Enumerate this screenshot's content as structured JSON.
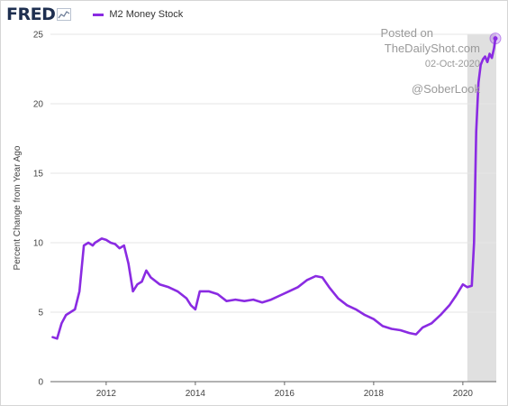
{
  "header": {
    "logo_text": "FRED",
    "logo_icon": "line-chart-icon"
  },
  "watermark": {
    "posted": "Posted on",
    "site": "TheDailyShot.com",
    "date": "02-Oct-2020",
    "handle": "@SoberLook"
  },
  "colors": {
    "series": "#8a2be2",
    "recession": "#e0e0e0",
    "grid": "#e6e6e6",
    "logo": "#1e2f50"
  },
  "chart_data": {
    "type": "line",
    "xlabel": "",
    "ylabel": "Percent Change from Year Ago",
    "xlim": [
      2010.75,
      2020.75
    ],
    "ylim": [
      0,
      25
    ],
    "x_ticks": [
      2012,
      2014,
      2016,
      2018,
      2020
    ],
    "y_ticks": [
      0,
      5,
      10,
      15,
      20,
      25
    ],
    "grid": "horizontal",
    "legend_position": "top-left",
    "recession_shading": [
      [
        2020.1,
        2020.75
      ]
    ],
    "series": [
      {
        "name": "M2 Money Stock",
        "x": [
          2010.8,
          2010.9,
          2011.0,
          2011.1,
          2011.2,
          2011.3,
          2011.4,
          2011.5,
          2011.6,
          2011.7,
          2011.75,
          2011.8,
          2011.9,
          2012.0,
          2012.1,
          2012.2,
          2012.3,
          2012.4,
          2012.5,
          2012.55,
          2012.6,
          2012.7,
          2012.8,
          2012.9,
          2013.0,
          2013.2,
          2013.4,
          2013.6,
          2013.8,
          2013.9,
          2014.0,
          2014.1,
          2014.3,
          2014.5,
          2014.7,
          2014.9,
          2015.1,
          2015.3,
          2015.5,
          2015.7,
          2015.9,
          2016.1,
          2016.3,
          2016.5,
          2016.7,
          2016.85,
          2017.0,
          2017.2,
          2017.4,
          2017.6,
          2017.8,
          2018.0,
          2018.2,
          2018.4,
          2018.6,
          2018.8,
          2018.95,
          2019.1,
          2019.3,
          2019.5,
          2019.7,
          2019.85,
          2020.0,
          2020.1,
          2020.2,
          2020.25,
          2020.3,
          2020.35,
          2020.4,
          2020.45,
          2020.5,
          2020.55,
          2020.6,
          2020.65,
          2020.7,
          2020.73
        ],
        "y": [
          3.2,
          3.1,
          4.2,
          4.8,
          5.0,
          5.2,
          6.5,
          9.8,
          10.0,
          9.8,
          10.0,
          10.1,
          10.3,
          10.2,
          10.0,
          9.9,
          9.6,
          9.8,
          8.5,
          7.5,
          6.5,
          7.0,
          7.2,
          8.0,
          7.5,
          7.0,
          6.8,
          6.5,
          6.0,
          5.5,
          5.2,
          6.5,
          6.5,
          6.3,
          5.8,
          5.9,
          5.8,
          5.9,
          5.7,
          5.9,
          6.2,
          6.5,
          6.8,
          7.3,
          7.6,
          7.5,
          6.8,
          6.0,
          5.5,
          5.2,
          4.8,
          4.5,
          4.0,
          3.8,
          3.7,
          3.5,
          3.4,
          3.9,
          4.2,
          4.8,
          5.5,
          6.2,
          7.0,
          6.8,
          6.9,
          10.0,
          18.0,
          21.5,
          22.8,
          23.2,
          23.4,
          23.0,
          23.6,
          23.3,
          24.0,
          24.7
        ]
      }
    ]
  }
}
